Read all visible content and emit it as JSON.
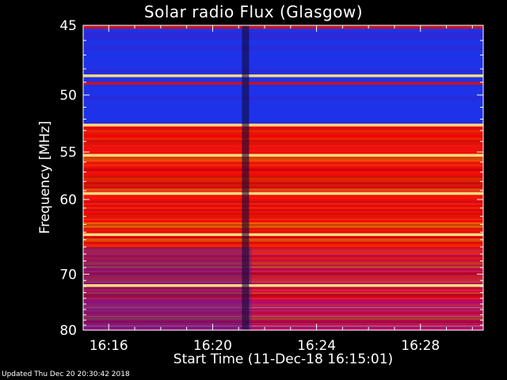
{
  "chart_data": {
    "type": "heatmap",
    "title": "Solar radio Flux (Glasgow)",
    "xlabel": "Start Time (11-Dec-18 16:15:01)",
    "ylabel": "Frequency [MHz]",
    "x_ticks": [
      "16:16",
      "16:20",
      "16:24",
      "16:28"
    ],
    "x_range": [
      "16:15:01",
      "16:30:25"
    ],
    "y_ticks": [
      45,
      50,
      55,
      60,
      70,
      80
    ],
    "y_range": [
      45,
      80
    ],
    "y_scale": "reciprocal",
    "colormap": "red-temperature",
    "colors": {
      "background": "#000000",
      "quiet_band": "#1e32e8",
      "active_band": "#cc1808",
      "bright_line": "#ffd880",
      "axes": "#ffffff"
    },
    "bright_lines_mhz": [
      48.5,
      52.5,
      55.3,
      59.3,
      64.3,
      71.8
    ],
    "dark_column_time": "16:21:15"
  },
  "footer": "Updated Thu Dec 20 20:30:42 2018"
}
